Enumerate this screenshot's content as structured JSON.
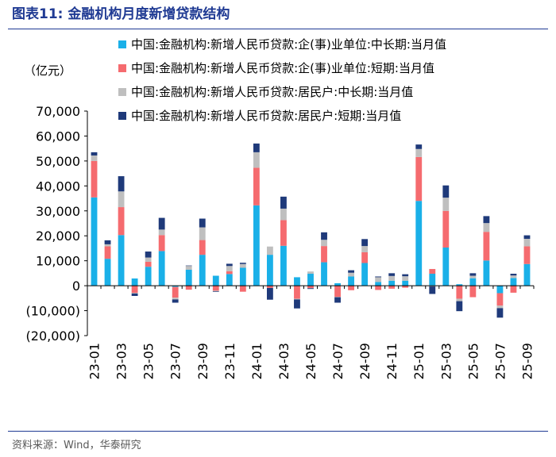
{
  "title": "图表11:   金融机构月度新增贷款结构",
  "source": "资料来源：Wind，华泰研究",
  "colors": {
    "title": "#1f3a93",
    "corp_long": "#1ab0e8",
    "corp_short": "#f56b6f",
    "hh_long": "#bfbfbf",
    "hh_short": "#1f3a7a"
  },
  "chart_data": {
    "type": "bar",
    "stacked": true,
    "unit_label": "（亿元）",
    "ylim": [
      -20000,
      70000
    ],
    "yticks": [
      70000,
      60000,
      50000,
      40000,
      30000,
      20000,
      10000,
      0,
      -10000,
      -20000
    ],
    "ytick_labels": [
      "70,000",
      "60,000",
      "50,000",
      "40,000",
      "30,000",
      "20,000",
      "10,000",
      "0",
      "(10,000)",
      "(20,000)"
    ],
    "categories": [
      "23-01",
      "23-02",
      "23-03",
      "23-04",
      "23-05",
      "23-06",
      "23-07",
      "23-08",
      "23-09",
      "23-10",
      "23-11",
      "23-12",
      "24-01",
      "24-02",
      "24-03",
      "24-04",
      "24-05",
      "24-06",
      "24-07",
      "24-08",
      "24-09",
      "24-10",
      "24-11",
      "24-12",
      "25-01",
      "25-02",
      "25-03",
      "25-04",
      "25-05",
      "25-06",
      "25-07",
      "25-08",
      "25-09"
    ],
    "xtick_labels": [
      "23-01",
      "23-03",
      "23-05",
      "23-07",
      "23-09",
      "23-11",
      "24-01",
      "24-03",
      "24-05",
      "24-07",
      "24-09",
      "24-11",
      "25-01",
      "25-03",
      "25-05",
      "25-07",
      "25-09"
    ],
    "legend": [
      "中国:金融机构:新增人民币贷款:企(事)业单位:中长期:当月值",
      "中国:金融机构:新增人民币贷款:企(事)业单位:短期:当月值",
      "中国:金融机构:新增人民币贷款:居民户:中长期:当月值",
      "中国:金融机构:新增人民币贷款:居民户:短期:当月值"
    ],
    "series": [
      {
        "name": "中国:金融机构:新增人民币贷款:企(事)业单位:中长期:当月值",
        "color_key": "corp_long",
        "values": [
          35400,
          10800,
          20300,
          2900,
          7600,
          13900,
          -500,
          6400,
          12400,
          4000,
          4700,
          7200,
          32200,
          12400,
          16000,
          3400,
          4800,
          9400,
          1000,
          3700,
          9100,
          1500,
          2000,
          2000,
          34000,
          4800,
          15300,
          600,
          3000,
          10100,
          -3000,
          3100,
          8700
        ]
      },
      {
        "name": "中国:金融机构:新增人民币贷款:企(事)业单位:短期:当月值",
        "color_key": "corp_short",
        "values": [
          14600,
          5000,
          11200,
          -2900,
          2000,
          6400,
          -4300,
          -1600,
          5900,
          -2000,
          1100,
          -2400,
          15100,
          -900,
          10300,
          -5200,
          -1000,
          6500,
          -4500,
          -1800,
          4300,
          -1700,
          -1200,
          -800,
          17600,
          1900,
          14700,
          -5200,
          -4600,
          11500,
          -5000,
          -2800,
          7100
        ]
      },
      {
        "name": "中国:金融机构:新增人民币贷款:居民户:中长期:当月值",
        "color_key": "hh_long",
        "values": [
          2200,
          800,
          6300,
          -200,
          1700,
          2200,
          -700,
          1600,
          5100,
          -300,
          2100,
          1500,
          6200,
          3300,
          4600,
          -300,
          900,
          2500,
          -100,
          1500,
          2500,
          1900,
          1900,
          1800,
          3200,
          -300,
          5300,
          -1000,
          1000,
          3500,
          -1000,
          1000,
          3000
        ]
      },
      {
        "name": "中国:金融机构:新增人民币贷款:居民户:短期:当月值",
        "color_key": "hh_short",
        "values": [
          1300,
          1600,
          6100,
          -1000,
          2400,
          4700,
          -1300,
          100,
          3500,
          -200,
          900,
          500,
          3500,
          -4700,
          4800,
          -3600,
          -300,
          3000,
          -2200,
          1000,
          2800,
          300,
          1100,
          800,
          1800,
          -3000,
          4900,
          -4000,
          1000,
          2800,
          -3800,
          700,
          1400
        ]
      }
    ]
  }
}
